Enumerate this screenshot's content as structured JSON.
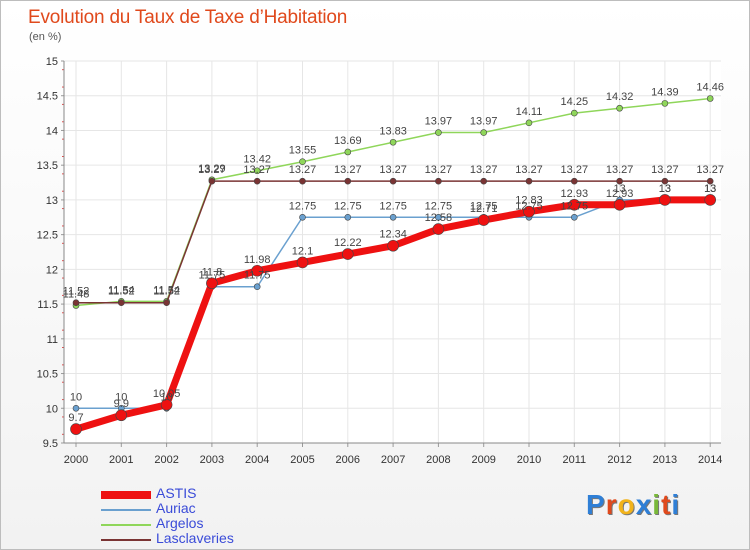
{
  "title": "Evolution du Taux de Taxe d’Habitation",
  "unit_label": "(en %)",
  "logo": {
    "letters": [
      "P",
      "r",
      "o",
      "x",
      "i",
      "t",
      "i"
    ],
    "colors": [
      "#2f7fd6",
      "#e0491c",
      "#f2b31b",
      "#2f7fd6",
      "#7ab83a",
      "#e0491c",
      "#2f7fd6"
    ]
  },
  "chart_data": {
    "type": "line",
    "title": "Evolution du Taux de Taxe d’Habitation",
    "ylabel": "(en %)",
    "xlabel": "",
    "x": [
      "2000",
      "2001",
      "2002",
      "2003",
      "2004",
      "2005",
      "2006",
      "2007",
      "2008",
      "2009",
      "2010",
      "2011",
      "2012",
      "2013",
      "2014"
    ],
    "ylim": [
      9.5,
      15
    ],
    "yticks": [
      "9.5",
      "10",
      "10.5",
      "11",
      "11.5",
      "12",
      "12.5",
      "13",
      "13.5",
      "14",
      "14.5",
      "15"
    ],
    "legend_position": "bottom-left",
    "series": [
      {
        "name": "ASTIS",
        "color": "#ee1111",
        "values": [
          9.7,
          9.9,
          10.05,
          11.8,
          11.98,
          12.1,
          12.22,
          12.34,
          12.58,
          12.71,
          12.83,
          12.93,
          12.93,
          13,
          13
        ],
        "labels": [
          "9.7",
          "9.9",
          "10.05",
          "11.8",
          "11.98",
          "12.1",
          "12.22",
          "12.34",
          "12.58",
          "12.71",
          "12.83",
          "12.93",
          "12.93",
          "13",
          "13"
        ]
      },
      {
        "name": "Auriac",
        "color": "#6aa0cf",
        "values": [
          10,
          10,
          10,
          11.75,
          11.75,
          12.75,
          12.75,
          12.75,
          12.75,
          12.75,
          12.75,
          12.75,
          13,
          13,
          13
        ],
        "labels": [
          "10",
          "10",
          "10",
          "11.75",
          "11.75",
          "12.75",
          "12.75",
          "12.75",
          "12.75",
          "12.75",
          "12.75",
          "12.75",
          "13",
          "13",
          "13"
        ]
      },
      {
        "name": "Argelos",
        "color": "#8fd65a",
        "values": [
          11.48,
          11.54,
          11.54,
          13.29,
          13.42,
          13.55,
          13.69,
          13.83,
          13.97,
          13.97,
          14.11,
          14.25,
          14.32,
          14.39,
          14.46
        ],
        "labels": [
          "11.48",
          "11.54",
          "11.54",
          "13.29",
          "13.42",
          "13.55",
          "13.69",
          "13.83",
          "13.97",
          "13.97",
          "14.11",
          "14.25",
          "14.32",
          "14.39",
          "14.46"
        ]
      },
      {
        "name": "Lasclaveries",
        "color": "#7a3434",
        "values": [
          11.52,
          11.52,
          11.52,
          13.27,
          13.27,
          13.27,
          13.27,
          13.27,
          13.27,
          13.27,
          13.27,
          13.27,
          13.27,
          13.27,
          13.27
        ],
        "labels": [
          "11.52",
          "11.52",
          "11.52",
          "13.27",
          "13.27",
          "13.27",
          "13.27",
          "13.27",
          "13.27",
          "13.27",
          "13.27",
          "13.27",
          "13.27",
          "13.27",
          "13.27"
        ]
      }
    ]
  }
}
